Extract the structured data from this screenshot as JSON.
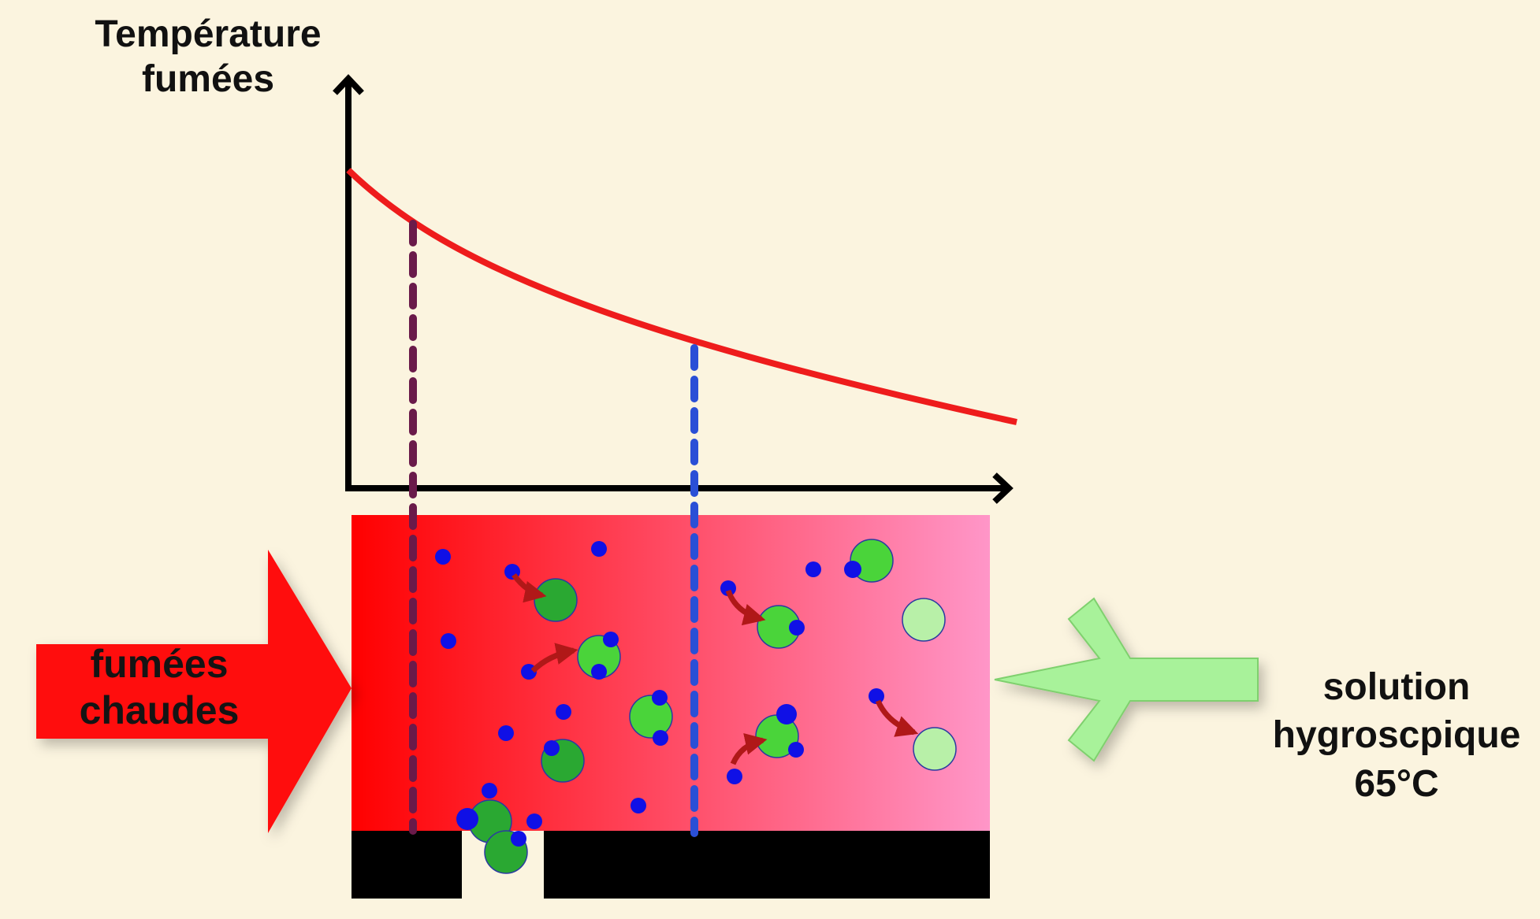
{
  "y_axis_label": {
    "line1": "Température",
    "line2": "fumées"
  },
  "inlet_label": {
    "line1": "fumées",
    "line2": "chaudes"
  },
  "solution_label": {
    "line1": "solution",
    "line2": "hygroscpique",
    "line3": "65°C"
  },
  "colors": {
    "background": "#fbf4df",
    "temperature_curve": "#ee1c1c",
    "hot_gas_arrow": "#ff0a0a",
    "solution_arrow": "#a8f29a",
    "gradient_start": "#ff0000",
    "gradient_end": "#ff96c8",
    "marker_line_1": "#6a1a4a",
    "marker_line_2": "#2a4fd6",
    "water_molecule": "#1010e6",
    "droplet_dark": "#2aa832",
    "droplet_mid": "#4ad43a",
    "droplet_light": "#b8f0a8",
    "transfer_arrow": "#b01818",
    "outlet_block": "#000000"
  }
}
